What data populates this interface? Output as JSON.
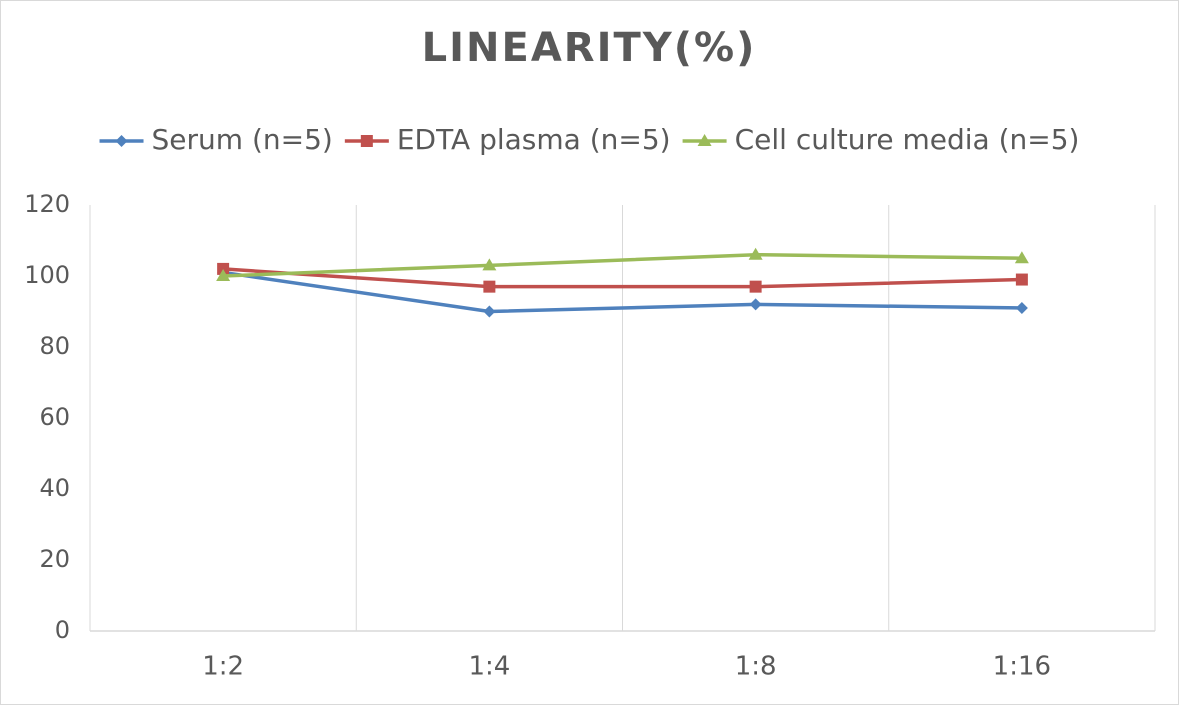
{
  "chart_data": {
    "type": "line",
    "title": "LINEARITY(%)",
    "categories": [
      "1:2",
      "1:4",
      "1:8",
      "1:16"
    ],
    "series": [
      {
        "name": "Serum (n=5)",
        "color": "#4f81bd",
        "marker": "diamond",
        "values": [
          101,
          90,
          92,
          91
        ]
      },
      {
        "name": "EDTA plasma (n=5)",
        "color": "#c0504d",
        "marker": "square",
        "values": [
          102,
          97,
          97,
          99
        ]
      },
      {
        "name": "Cell culture media (n=5)",
        "color": "#9bbb59",
        "marker": "triangle",
        "values": [
          100,
          103,
          106,
          105
        ]
      }
    ],
    "ylim": [
      0,
      120
    ],
    "yticks": [
      0,
      20,
      40,
      60,
      80,
      100,
      120
    ],
    "grid": true,
    "legend": "top"
  }
}
